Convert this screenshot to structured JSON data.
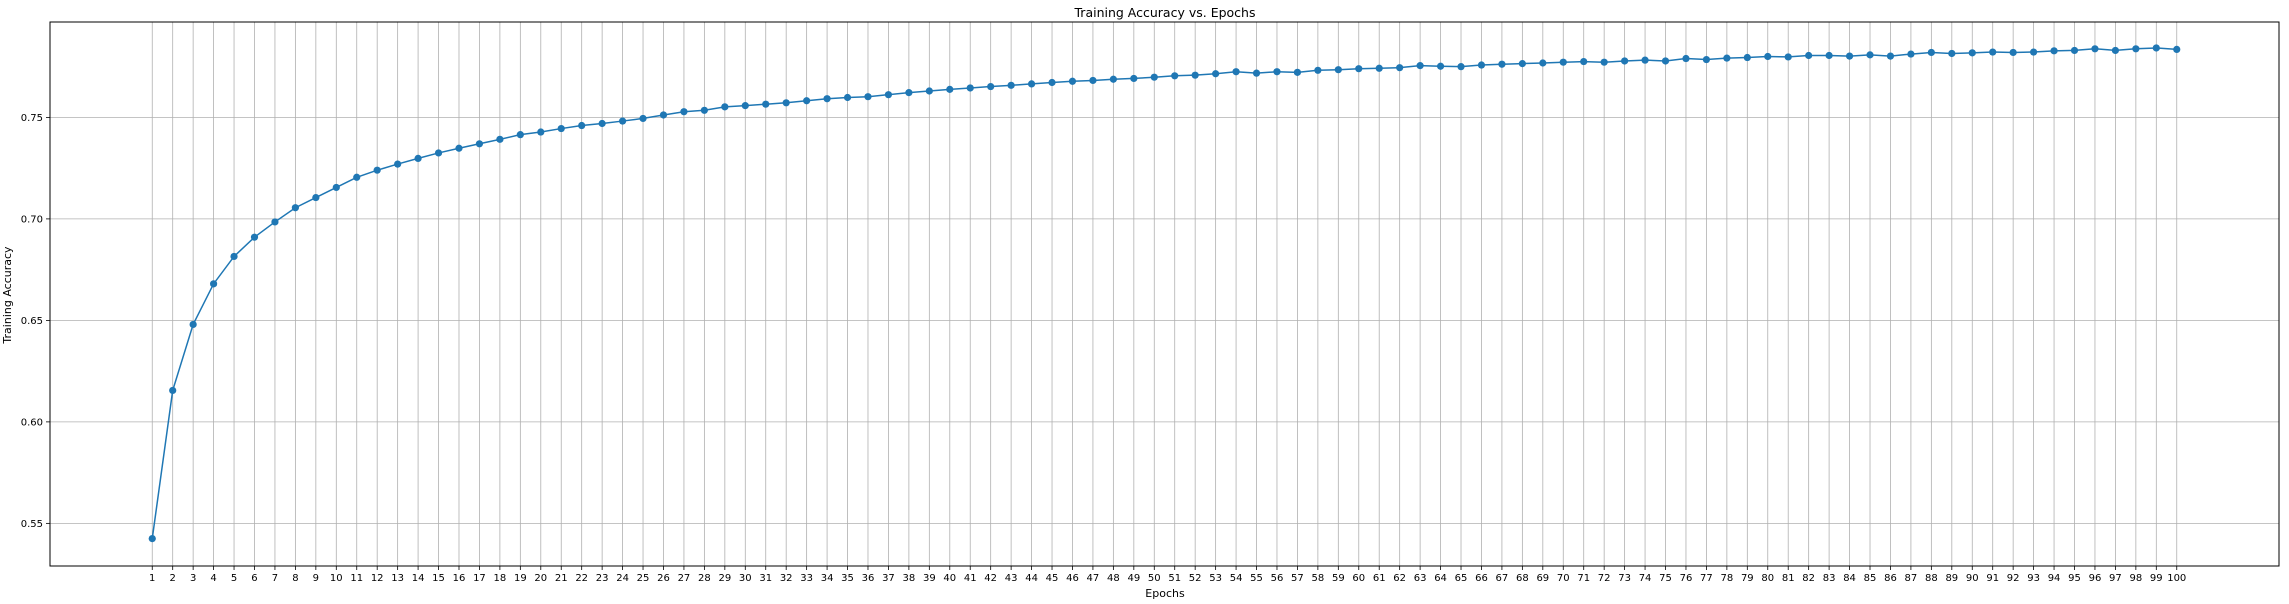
{
  "chart_data": {
    "type": "line",
    "title": "Training Accuracy vs. Epochs",
    "xlabel": "Epochs",
    "ylabel": "Training Accuracy",
    "x": [
      1,
      2,
      3,
      4,
      5,
      6,
      7,
      8,
      9,
      10,
      11,
      12,
      13,
      14,
      15,
      16,
      17,
      18,
      19,
      20,
      21,
      22,
      23,
      24,
      25,
      26,
      27,
      28,
      29,
      30,
      31,
      32,
      33,
      34,
      35,
      36,
      37,
      38,
      39,
      40,
      41,
      42,
      43,
      44,
      45,
      46,
      47,
      48,
      49,
      50,
      51,
      52,
      53,
      54,
      55,
      56,
      57,
      58,
      59,
      60,
      61,
      62,
      63,
      64,
      65,
      66,
      67,
      68,
      69,
      70,
      71,
      72,
      73,
      74,
      75,
      76,
      77,
      78,
      79,
      80,
      81,
      82,
      83,
      84,
      85,
      86,
      87,
      88,
      89,
      90,
      91,
      92,
      93,
      94,
      95,
      96,
      97,
      98,
      99,
      100
    ],
    "xticks": [
      "1",
      "2",
      "3",
      "4",
      "5",
      "6",
      "7",
      "8",
      "9",
      "10",
      "11",
      "12",
      "13",
      "14",
      "15",
      "16",
      "17",
      "18",
      "19",
      "20",
      "21",
      "22",
      "23",
      "24",
      "25",
      "26",
      "27",
      "28",
      "29",
      "30",
      "31",
      "32",
      "33",
      "34",
      "35",
      "36",
      "37",
      "38",
      "39",
      "40",
      "41",
      "42",
      "43",
      "44",
      "45",
      "46",
      "47",
      "48",
      "49",
      "50",
      "51",
      "52",
      "53",
      "54",
      "55",
      "56",
      "57",
      "58",
      "59",
      "60",
      "61",
      "62",
      "63",
      "64",
      "65",
      "66",
      "67",
      "68",
      "69",
      "70",
      "71",
      "72",
      "73",
      "74",
      "75",
      "76",
      "77",
      "78",
      "79",
      "80",
      "81",
      "82",
      "83",
      "84",
      "85",
      "86",
      "87",
      "88",
      "89",
      "90",
      "91",
      "92",
      "93",
      "94",
      "95",
      "96",
      "97",
      "98",
      "99",
      "100"
    ],
    "yticks": [
      "0.55",
      "0.60",
      "0.65",
      "0.70",
      "0.75"
    ],
    "ylim": [
      0.529,
      0.797
    ],
    "xlim": [
      -4,
      105
    ],
    "grid": true,
    "color": "#1f77b4",
    "series": [
      {
        "values": [
          0.5425,
          0.6155,
          0.648,
          0.668,
          0.6815,
          0.691,
          0.6985,
          0.7055,
          0.7105,
          0.7155,
          0.7205,
          0.724,
          0.727,
          0.7298,
          0.7325,
          0.7348,
          0.737,
          0.7392,
          0.7415,
          0.7428,
          0.7445,
          0.746,
          0.747,
          0.7482,
          0.7495,
          0.7512,
          0.7528,
          0.7535,
          0.7552,
          0.7558,
          0.7565,
          0.7572,
          0.7582,
          0.7592,
          0.7598,
          0.7602,
          0.7612,
          0.7622,
          0.763,
          0.7638,
          0.7645,
          0.7652,
          0.7658,
          0.7665,
          0.7672,
          0.7678,
          0.7682,
          0.7688,
          0.7692,
          0.7698,
          0.7705,
          0.7708,
          0.7715,
          0.7725,
          0.7718,
          0.7725,
          0.7722,
          0.7732,
          0.7735,
          0.774,
          0.7742,
          0.7745,
          0.7755,
          0.7752,
          0.775,
          0.7758,
          0.7762,
          0.7765,
          0.7768,
          0.7772,
          0.7775,
          0.7772,
          0.7778,
          0.7782,
          0.7778,
          0.779,
          0.7785,
          0.7792,
          0.7795,
          0.78,
          0.7798,
          0.7805,
          0.7805,
          0.7802,
          0.7808,
          0.7802,
          0.7812,
          0.782,
          0.7815,
          0.7818,
          0.7822,
          0.782,
          0.7822,
          0.7828,
          0.783,
          0.7838,
          0.783,
          0.7838,
          0.7842,
          0.7835
        ]
      }
    ]
  }
}
